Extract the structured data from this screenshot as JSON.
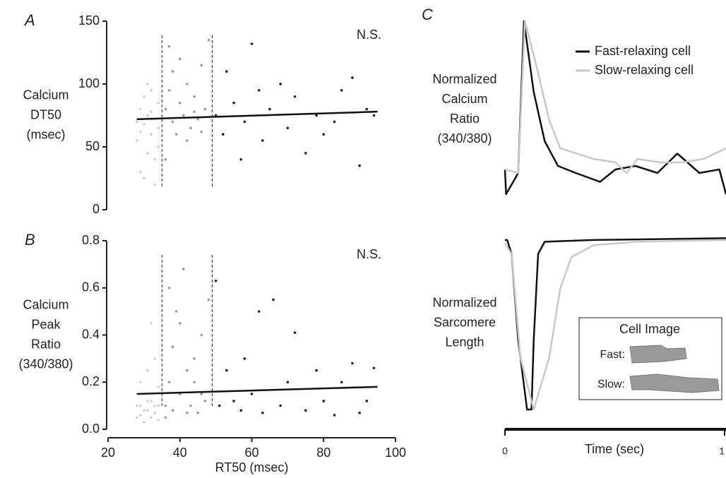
{
  "chart_data": [
    {
      "type": "scatter",
      "panel": "A",
      "ylabel": [
        "Calcium",
        "DT50",
        "(msec)"
      ],
      "annotation": "N.S.",
      "xlim": [
        20,
        100
      ],
      "ylim": [
        0,
        150
      ],
      "yticks": [
        0,
        50,
        100,
        150
      ],
      "thresholds": [
        35,
        49
      ],
      "fit": {
        "x": [
          28,
          95
        ],
        "values": [
          72,
          78
        ]
      },
      "series": [
        {
          "color": "#cfcfcf",
          "x": [
            28,
            29,
            29,
            30,
            30,
            31,
            31,
            32,
            32,
            33,
            33,
            34,
            34,
            29,
            31,
            33,
            30,
            34,
            32,
            28
          ],
          "values": [
            55,
            80,
            30,
            68,
            90,
            45,
            75,
            60,
            95,
            20,
            72,
            85,
            50,
            62,
            100,
            40,
            25,
            65,
            78,
            70
          ]
        },
        {
          "color": "#999999",
          "x": [
            36,
            37,
            38,
            38,
            39,
            40,
            41,
            42,
            43,
            44,
            45,
            46,
            47,
            48,
            36,
            40,
            42,
            44,
            46,
            37
          ],
          "values": [
            80,
            95,
            70,
            110,
            60,
            85,
            75,
            100,
            65,
            90,
            72,
            115,
            80,
            135,
            40,
            120,
            55,
            78,
            62,
            130
          ]
        },
        {
          "color": "#222222",
          "x": [
            50,
            52,
            53,
            55,
            57,
            58,
            60,
            62,
            63,
            65,
            68,
            70,
            72,
            75,
            78,
            80,
            83,
            85,
            88,
            90,
            92,
            94
          ],
          "values": [
            75,
            60,
            110,
            85,
            40,
            70,
            132,
            95,
            55,
            80,
            100,
            65,
            90,
            45,
            75,
            60,
            70,
            95,
            105,
            35,
            80,
            75
          ]
        }
      ]
    },
    {
      "type": "scatter",
      "panel": "B",
      "ylabel": [
        "Calcium",
        "Peak",
        "Ratio",
        "(340/380)"
      ],
      "annotation": "N.S.",
      "xlabel": "RT50 (msec)",
      "xlim": [
        20,
        100
      ],
      "xticks": [
        20,
        40,
        60,
        80,
        100
      ],
      "ylim": [
        0,
        0.8
      ],
      "yticks": [
        {
          "value": 0,
          "label": "0.0"
        },
        0.2,
        0.4,
        0.6,
        0.8
      ],
      "thresholds": [
        35,
        49
      ],
      "fit": {
        "x": [
          28,
          95
        ],
        "values": [
          0.15,
          0.18
        ]
      },
      "series": [
        {
          "color": "#cfcfcf",
          "x": [
            28,
            29,
            29,
            30,
            30,
            31,
            31,
            32,
            32,
            33,
            33,
            34,
            34,
            29,
            31,
            33,
            30,
            34,
            32,
            28
          ],
          "values": [
            0.05,
            0.1,
            0.2,
            0.03,
            0.15,
            0.08,
            0.25,
            0.05,
            0.12,
            0.3,
            0.07,
            0.18,
            0.04,
            0.06,
            0.12,
            0.1,
            0.08,
            0.1,
            0.45,
            0.1
          ]
        },
        {
          "color": "#999999",
          "x": [
            36,
            37,
            38,
            38,
            39,
            40,
            41,
            42,
            43,
            44,
            45,
            46,
            47,
            48,
            36,
            40,
            42,
            44,
            46,
            37
          ],
          "values": [
            0.1,
            0.2,
            0.35,
            0.08,
            0.5,
            0.15,
            0.68,
            0.25,
            0.1,
            0.3,
            0.07,
            0.4,
            0.12,
            0.55,
            0.05,
            0.45,
            0.07,
            0.2,
            0.15,
            0.6
          ]
        },
        {
          "color": "#222222",
          "x": [
            50,
            51,
            53,
            55,
            57,
            58,
            60,
            62,
            63,
            66,
            68,
            70,
            72,
            75,
            78,
            80,
            83,
            85,
            88,
            90,
            92,
            94
          ],
          "values": [
            0.63,
            0.1,
            0.25,
            0.12,
            0.08,
            0.3,
            0.15,
            0.5,
            0.07,
            0.55,
            0.1,
            0.2,
            0.41,
            0.08,
            0.25,
            0.12,
            0.06,
            0.2,
            0.28,
            0.07,
            0.12,
            0.26
          ]
        }
      ]
    },
    {
      "type": "line",
      "panel": "C",
      "ylabel": [
        "Normalized",
        "Calcium",
        "Ratio",
        "(340/380)"
      ],
      "xlim": [
        0,
        1
      ],
      "ylim": [
        0,
        1
      ],
      "series": [
        {
          "name": "Fast-relaxing cell",
          "color": "#111111",
          "x": [
            0,
            0.005,
            0.06,
            0.086,
            0.13,
            0.18,
            0.24,
            0.32,
            0.43,
            0.5,
            0.59,
            0.69,
            0.78,
            0.88,
            0.97,
            1.0
          ],
          "values": [
            0.16,
            0.02,
            0.14,
            1.0,
            0.6,
            0.32,
            0.18,
            0.14,
            0.09,
            0.16,
            0.18,
            0.14,
            0.25,
            0.14,
            0.16,
            0.02
          ]
        },
        {
          "name": "Slow-relaxing cell",
          "color": "#c8c8c8",
          "x": [
            0,
            0.06,
            0.09,
            0.14,
            0.2,
            0.25,
            0.3,
            0.4,
            0.5,
            0.55,
            0.6,
            0.7,
            0.8,
            0.9,
            1.0
          ],
          "values": [
            0.16,
            0.14,
            1.0,
            0.76,
            0.44,
            0.28,
            0.26,
            0.22,
            0.2,
            0.14,
            0.22,
            0.2,
            0.2,
            0.22,
            0.28
          ]
        }
      ]
    },
    {
      "type": "line",
      "ylabel": [
        "Normalized",
        "Sarcomere",
        "Length"
      ],
      "xlabel": "Time (sec)",
      "xlim": [
        0,
        1
      ],
      "xticks": [
        0,
        1
      ],
      "ylim": [
        0,
        1
      ],
      "inset": {
        "title": "Cell Image",
        "labels": [
          "Fast:",
          "Slow:"
        ]
      },
      "series": [
        {
          "color": "#111111",
          "x": [
            0,
            0.01,
            0.03,
            0.06,
            0.1,
            0.12,
            0.13,
            0.15,
            0.18,
            0.4,
            1.0
          ],
          "values": [
            0.98,
            0.98,
            0.9,
            0.4,
            0.0,
            0.0,
            0.4,
            0.9,
            0.97,
            0.98,
            0.99
          ]
        },
        {
          "color": "#c8c8c8",
          "x": [
            0,
            0.03,
            0.07,
            0.13,
            0.2,
            0.25,
            0.3,
            0.4,
            0.6,
            1.0
          ],
          "values": [
            0.96,
            0.9,
            0.3,
            0.0,
            0.3,
            0.7,
            0.88,
            0.95,
            0.97,
            0.98
          ]
        }
      ]
    }
  ]
}
